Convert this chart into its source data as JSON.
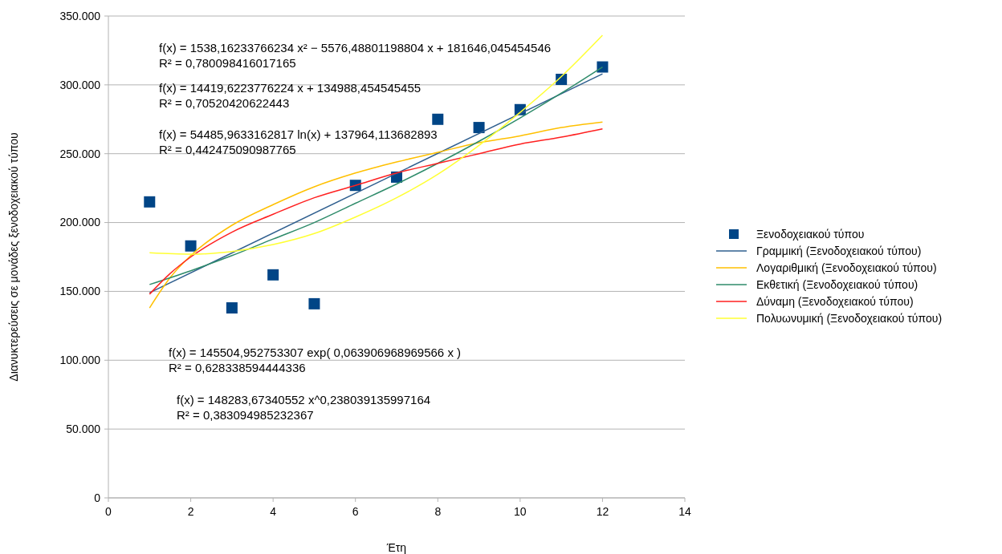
{
  "chart_data": {
    "type": "scatter",
    "xlabel": "Έτη",
    "ylabel": "Διανυκτερεύσεις σε μονάδες ξενοδοχειακού τύπου",
    "xlim": [
      0,
      14
    ],
    "xticks": [
      0,
      2,
      4,
      6,
      8,
      10,
      12,
      14
    ],
    "ylim": [
      0,
      350000
    ],
    "yticks": [
      {
        "value": 0,
        "label": "0"
      },
      {
        "value": 50000,
        "label": "50.000"
      },
      {
        "value": 100000,
        "label": "100.000"
      },
      {
        "value": 150000,
        "label": "150.000"
      },
      {
        "value": 200000,
        "label": "200.000"
      },
      {
        "value": 250000,
        "label": "250.000"
      },
      {
        "value": 300000,
        "label": "300.000"
      },
      {
        "value": 350000,
        "label": "350.000"
      }
    ],
    "grid": "y",
    "legend": "right",
    "series": [
      {
        "name": "Ξενοδοχειακού τύπου",
        "marker": "square",
        "color": "#004586",
        "x": [
          1,
          2,
          3,
          4,
          5,
          6,
          7,
          8,
          9,
          10,
          11,
          12
        ],
        "values": [
          215000,
          183000,
          138000,
          162000,
          141000,
          227000,
          233000,
          275000,
          269000,
          282000,
          304000,
          313000
        ]
      },
      {
        "name": "Γραμμική (Ξενοδοχειακού τύπου)",
        "type": "line",
        "marker": "none",
        "color": "#2f5f8f",
        "x": [
          1,
          12
        ],
        "values": [
          149000,
          308000
        ]
      },
      {
        "name": "Λογαριθμική (Ξενοδοχειακού τύπου)",
        "type": "line",
        "marker": "none",
        "color": "#ffc000",
        "x": [
          1,
          1.5,
          2,
          3,
          4,
          5,
          6,
          7,
          8,
          9,
          10,
          11,
          12
        ],
        "values": [
          138000,
          160000,
          176000,
          198000,
          213000,
          226000,
          236000,
          244000,
          251000,
          258000,
          263000,
          269000,
          273000
        ]
      },
      {
        "name": "Εκθετική (Ξενοδοχειακού τύπου)",
        "type": "line",
        "marker": "none",
        "color": "#2e8b6a",
        "x": [
          1,
          2,
          3,
          4,
          5,
          6,
          7,
          8,
          9,
          10,
          11,
          12
        ],
        "values": [
          155000,
          165000,
          176000,
          188000,
          200000,
          214000,
          228000,
          243000,
          259000,
          276000,
          294000,
          313000
        ]
      },
      {
        "name": "Δύναμη (Ξενοδοχειακού τύπου)",
        "type": "line",
        "marker": "none",
        "color": "#ff2020",
        "x": [
          1,
          1.5,
          2,
          3,
          4,
          5,
          6,
          7,
          8,
          9,
          10,
          11,
          12
        ],
        "values": [
          148000,
          163000,
          175000,
          193000,
          206000,
          218000,
          227000,
          236000,
          243000,
          250000,
          257000,
          262000,
          268000
        ]
      },
      {
        "name": "Πολυωνυμική (Ξενοδοχειακού τύπου)",
        "type": "line",
        "marker": "none",
        "color": "#ffff33",
        "x": [
          1,
          2,
          3,
          4,
          5,
          6,
          7,
          8,
          9,
          10,
          11,
          12
        ],
        "values": [
          178000,
          177000,
          179000,
          184000,
          192000,
          204000,
          218000,
          235000,
          256000,
          280000,
          306000,
          336000
        ]
      }
    ],
    "annotations": [
      "f(x) = 1538,16233766234 x² − 5576,48801198804 x + 181646,045454546\nR² = 0,780098416017165",
      "f(x) = 14419,6223776224 x + 134988,454545455\nR² = 0,70520420622443",
      "f(x) = 54485,9633162817 ln(x) + 137964,113682893\nR² = 0,442475090987765",
      "f(x) = 145504,952753307 exp( 0,063906968969566 x )\nR² = 0,628338594444336",
      "f(x) = 148283,67340552 x^0,238039135997164\nR² = 0,383094985232367"
    ]
  }
}
